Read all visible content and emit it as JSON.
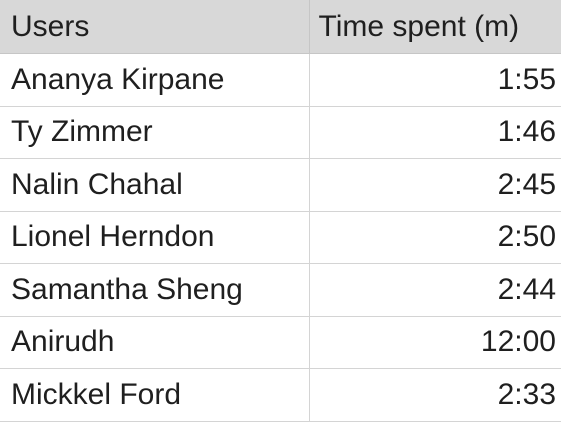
{
  "table": {
    "headers": [
      "Users",
      "Time spent (m)"
    ],
    "rows": [
      {
        "user": "Ananya Kirpane",
        "time": "1:55"
      },
      {
        "user": "Ty Zimmer",
        "time": "1:46"
      },
      {
        "user": "Nalin Chahal",
        "time": "2:45"
      },
      {
        "user": "Lionel Herndon",
        "time": "2:50"
      },
      {
        "user": "Samantha Sheng",
        "time": "2:44"
      },
      {
        "user": "Anirudh",
        "time": "12:00"
      },
      {
        "user": "Mickkel Ford",
        "time": "2:33"
      }
    ]
  }
}
